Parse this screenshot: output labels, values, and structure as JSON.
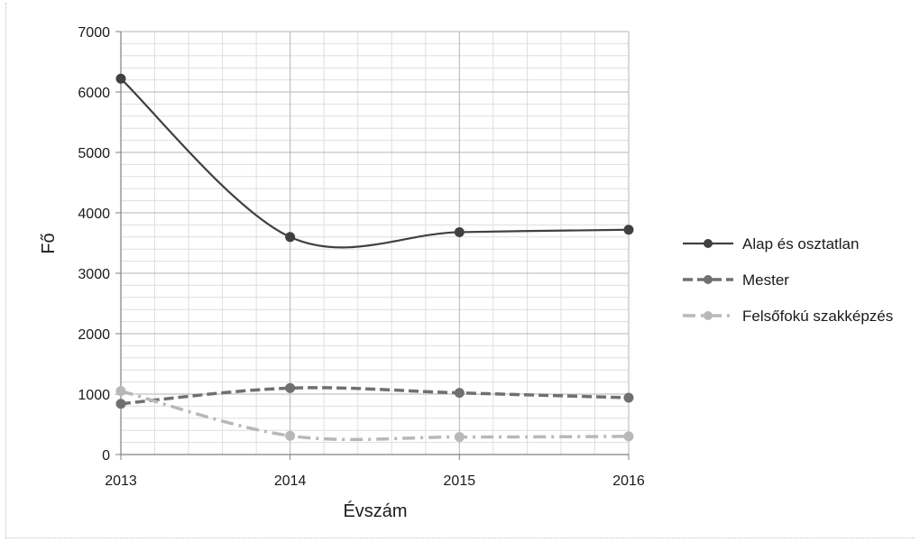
{
  "chart_data": {
    "type": "line",
    "title": "",
    "xlabel": "Évszám",
    "ylabel": "Fő",
    "categories": [
      "2013",
      "2014",
      "2015",
      "2016"
    ],
    "ylim": [
      0,
      7000
    ],
    "yticks": [
      0,
      1000,
      2000,
      3000,
      4000,
      5000,
      6000,
      7000
    ],
    "grid": "on",
    "legend": "right",
    "series": [
      {
        "name": "Alap és osztatlan",
        "values": [
          6220,
          3600,
          3680,
          3720
        ],
        "color": "#404040",
        "dash": "solid"
      },
      {
        "name": "Mester",
        "values": [
          840,
          1100,
          1020,
          940
        ],
        "color": "#707070",
        "dash": "dashed"
      },
      {
        "name": "Felsőfokú szakképzés",
        "values": [
          1050,
          310,
          290,
          300
        ],
        "color": "#b8b8b8",
        "dash": "dash-dot"
      }
    ]
  }
}
